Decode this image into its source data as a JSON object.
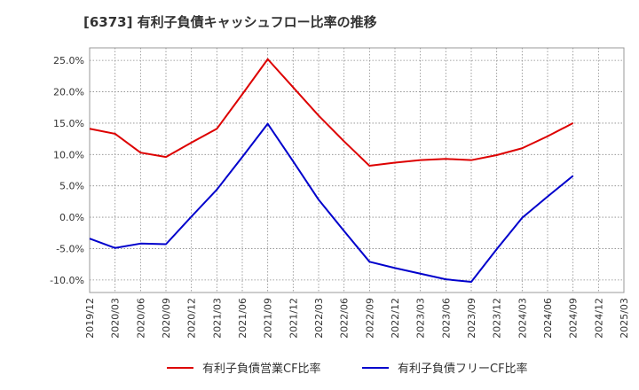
{
  "chart_data": {
    "type": "line",
    "title": "[6373]  有利子負債キャッシュフロー比率の推移",
    "x": [
      "2019/12",
      "2020/03",
      "2020/06",
      "2020/09",
      "2020/12",
      "2021/03",
      "2021/06",
      "2021/09",
      "2021/12",
      "2022/03",
      "2022/06",
      "2022/09",
      "2022/12",
      "2023/03",
      "2023/06",
      "2023/09",
      "2023/12",
      "2024/03",
      "2024/06",
      "2024/09",
      "2024/12",
      "2025/03"
    ],
    "yticks": [
      "25.0%",
      "20.0%",
      "15.0%",
      "10.0%",
      "5.0%",
      "0.0%",
      "-5.0%",
      "-10.0%"
    ],
    "ytick_values": [
      25,
      20,
      15,
      10,
      5,
      0,
      -5,
      -10
    ],
    "ylim": [
      -12,
      27
    ],
    "grid": true,
    "legend_position": "bottom",
    "series": [
      {
        "name": "有利子負債営業CF比率",
        "color": "#dd0000",
        "values": [
          14.1,
          13.3,
          10.3,
          9.6,
          11.9,
          14.1,
          19.6,
          25.2,
          20.7,
          16.2,
          12.1,
          8.2,
          8.7,
          9.1,
          9.3,
          9.1,
          9.9,
          11.0,
          12.9,
          15.0,
          null,
          null
        ]
      },
      {
        "name": "有利子負債フリーCF比率",
        "color": "#0000cc",
        "values": [
          -3.4,
          -4.9,
          -4.2,
          -4.3,
          0.1,
          4.4,
          9.6,
          14.9,
          8.9,
          2.8,
          -2.2,
          -7.1,
          -8.1,
          -9.0,
          -9.9,
          -10.3,
          -5.1,
          -0.1,
          3.3,
          6.6,
          null,
          null
        ]
      }
    ]
  }
}
